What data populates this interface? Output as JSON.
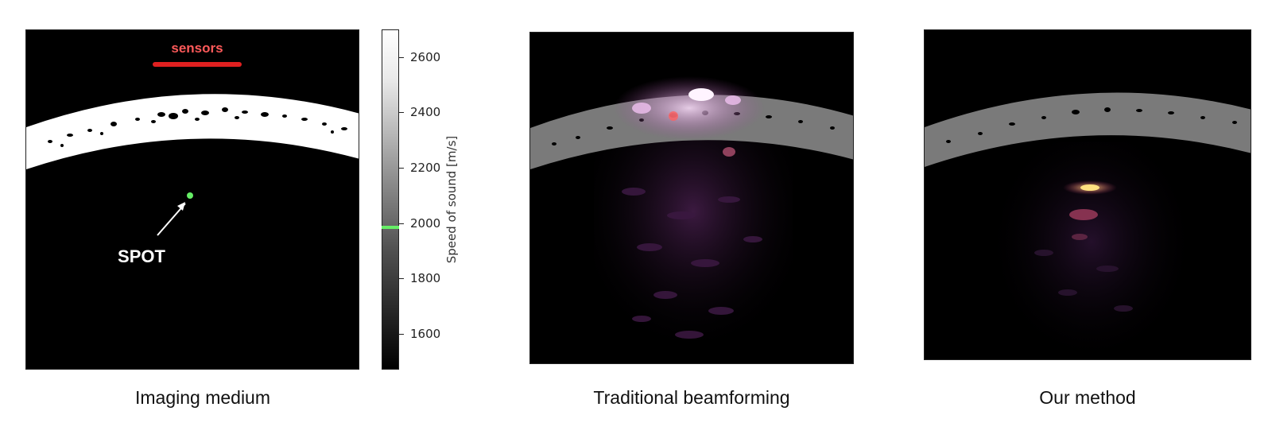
{
  "panels": [
    {
      "caption": "Imaging medium"
    },
    {
      "caption": "Traditional beamforming"
    },
    {
      "caption": "Our method"
    }
  ],
  "annotations": {
    "sensors_label": "sensors",
    "spot_label": "SPOT"
  },
  "colorbar": {
    "title": "Speed of sound [m/s]",
    "ticks": [
      "2600",
      "2400",
      "2200",
      "2000",
      "1800",
      "1600"
    ],
    "range": [
      1500,
      2700
    ],
    "highlight_value": 2000,
    "highlight_color": "#66ee66"
  },
  "colors": {
    "sensor_bar": "#e02020",
    "sensors_text": "#ff5a5a",
    "spot_dot": "#66ee66"
  }
}
